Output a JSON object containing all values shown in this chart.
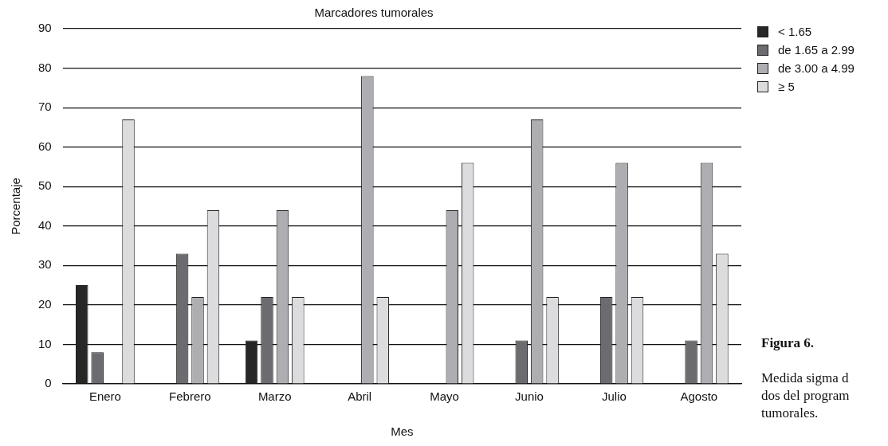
{
  "chart_data": {
    "type": "bar",
    "title": "Marcadores tumorales",
    "xlabel": "Mes",
    "ylabel": "Porcentaje",
    "categories": [
      "Enero",
      "Febrero",
      "Marzo",
      "Abril",
      "Mayo",
      "Junio",
      "Julio",
      "Agosto"
    ],
    "series": [
      {
        "name": "< 1.65",
        "color": "#272727",
        "values": [
          25,
          null,
          11,
          null,
          null,
          null,
          null,
          null
        ]
      },
      {
        "name": "de 1.65 a 2.99",
        "color": "#6c6c70",
        "values": [
          8,
          33,
          22,
          null,
          null,
          11,
          22,
          11
        ]
      },
      {
        "name": "de 3.00 a 4.99",
        "color": "#aeaeb2",
        "values": [
          null,
          22,
          44,
          78,
          44,
          67,
          56,
          56
        ]
      },
      {
        "name": "≥ 5",
        "color": "#dcdcde",
        "values": [
          67,
          44,
          22,
          22,
          56,
          22,
          22,
          33
        ]
      }
    ],
    "ylim": [
      0,
      90
    ],
    "yticks": [
      0,
      10,
      20,
      30,
      40,
      50,
      60,
      70,
      80,
      90
    ],
    "grid": "y",
    "legend": "top right",
    "annotations": [
      "Figura 6.",
      "Medida sigma d\ndos del program\ntumorales."
    ]
  }
}
